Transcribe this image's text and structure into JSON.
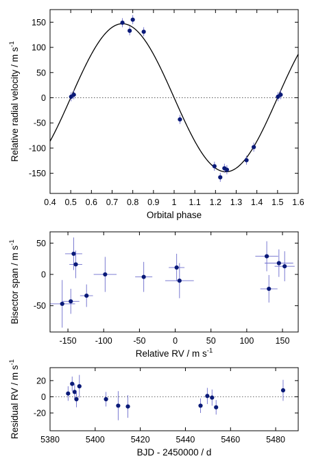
{
  "colors": {
    "point": "#0a1a78",
    "errorbar": "#6b6bcc",
    "fit": "#000000",
    "axis": "#000000",
    "zeroline": "#555555"
  },
  "chart_data": [
    {
      "id": "rv-phase",
      "type": "scatter",
      "xlabel": "Orbital phase",
      "ylabel": "Relative radial velocity / m s",
      "ylabel_sup": "-1",
      "xlim": [
        0.4,
        1.6
      ],
      "ylim": [
        -190,
        175
      ],
      "xticks": [
        0.4,
        0.5,
        0.6,
        0.7,
        0.8,
        0.9,
        1,
        1.1,
        1.2,
        1.3,
        1.4,
        1.5,
        1.6
      ],
      "xticklabels": [
        "0.4",
        "0.5",
        "0.6",
        "0.7",
        "0.8",
        "0.9",
        "1",
        "1.1",
        "1.2",
        "1.3",
        "1.4",
        "1.5",
        "1.6"
      ],
      "yticks": [
        -150,
        -100,
        -50,
        0,
        50,
        100,
        150
      ],
      "yticklabels": [
        "-150",
        "-100",
        "-50",
        "0",
        "50",
        "100",
        "150"
      ],
      "zero_line": true,
      "model": {
        "type": "sine",
        "amplitude": 147,
        "zero_phase": 1.0,
        "period": 1.0,
        "slope": "decreasing"
      },
      "points": [
        {
          "x": 0.502,
          "y": 2,
          "yerr": 9
        },
        {
          "x": 0.515,
          "y": 6,
          "yerr": 9
        },
        {
          "x": 0.75,
          "y": 149,
          "yerr": 9
        },
        {
          "x": 0.785,
          "y": 133,
          "yerr": 9
        },
        {
          "x": 0.8,
          "y": 155,
          "yerr": 9
        },
        {
          "x": 0.853,
          "y": 131,
          "yerr": 9
        },
        {
          "x": 1.028,
          "y": -43,
          "yerr": 9
        },
        {
          "x": 1.195,
          "y": -136,
          "yerr": 9
        },
        {
          "x": 1.223,
          "y": -158,
          "yerr": 9
        },
        {
          "x": 1.243,
          "y": -140,
          "yerr": 9
        },
        {
          "x": 1.255,
          "y": -143,
          "yerr": 9
        },
        {
          "x": 1.35,
          "y": -124,
          "yerr": 9
        },
        {
          "x": 1.385,
          "y": -98,
          "yerr": 9
        },
        {
          "x": 1.502,
          "y": 2,
          "yerr": 9
        },
        {
          "x": 1.515,
          "y": 6,
          "yerr": 9
        }
      ]
    },
    {
      "id": "bisector",
      "type": "scatter",
      "xlabel": "Relative RV / m s",
      "xlabel_sup": "-1",
      "ylabel": "Bisector span / m s",
      "ylabel_sup": "-1",
      "xlim": [
        -175,
        172
      ],
      "ylim": [
        -92,
        68
      ],
      "xticks": [
        -150,
        -100,
        -50,
        0,
        50,
        100,
        150
      ],
      "xticklabels": [
        "-150",
        "-100",
        "-50",
        "0",
        "50",
        "100",
        "150"
      ],
      "yticks": [
        -50,
        0,
        50
      ],
      "yticklabels": [
        "-50",
        "0",
        "50"
      ],
      "zero_line": false,
      "points": [
        {
          "x": -158,
          "y": -47,
          "xerr": 18,
          "yerr": 38
        },
        {
          "x": -146,
          "y": -43,
          "xerr": 12,
          "yerr": 20
        },
        {
          "x": -142,
          "y": 33,
          "xerr": 12,
          "yerr": 26
        },
        {
          "x": -139,
          "y": 16,
          "xerr": 9,
          "yerr": 22
        },
        {
          "x": -124,
          "y": -34,
          "xerr": 9,
          "yerr": 18
        },
        {
          "x": -98,
          "y": 0,
          "xerr": 16,
          "yerr": 28
        },
        {
          "x": -44,
          "y": -4,
          "xerr": 12,
          "yerr": 24
        },
        {
          "x": 2,
          "y": 11,
          "xerr": 11,
          "yerr": 22
        },
        {
          "x": 6,
          "y": -10,
          "xerr": 20,
          "yerr": 28
        },
        {
          "x": 128,
          "y": 29,
          "xerr": 16,
          "yerr": 24
        },
        {
          "x": 131,
          "y": -23,
          "xerr": 12,
          "yerr": 22
        },
        {
          "x": 145,
          "y": 18,
          "xerr": 20,
          "yerr": 22
        },
        {
          "x": 153,
          "y": 13,
          "xerr": 14,
          "yerr": 24
        }
      ]
    },
    {
      "id": "residuals",
      "type": "scatter",
      "xlabel": "BJD - 2450000 / d",
      "ylabel": "Residual RV / m s",
      "ylabel_sup": "-1",
      "xlim": [
        5380,
        5490
      ],
      "ylim": [
        -42,
        36
      ],
      "xticks": [
        5380,
        5400,
        5420,
        5440,
        5460,
        5480
      ],
      "xticklabels": [
        "5380",
        "5400",
        "5420",
        "5440",
        "5460",
        "5480"
      ],
      "yticks": [
        -20,
        0,
        20
      ],
      "yticklabels": [
        "-20",
        "0",
        "20"
      ],
      "zero_line": true,
      "points": [
        {
          "x": 5388.0,
          "y": 4,
          "yerr": 9
        },
        {
          "x": 5389.8,
          "y": 16,
          "yerr": 9
        },
        {
          "x": 5390.9,
          "y": 6,
          "yerr": 10
        },
        {
          "x": 5391.7,
          "y": -3,
          "yerr": 10
        },
        {
          "x": 5393.0,
          "y": 13,
          "yerr": 14
        },
        {
          "x": 5404.8,
          "y": -3,
          "yerr": 9
        },
        {
          "x": 5410.2,
          "y": -11,
          "yerr": 18
        },
        {
          "x": 5414.5,
          "y": -12,
          "yerr": 14
        },
        {
          "x": 5446.7,
          "y": -11,
          "yerr": 9
        },
        {
          "x": 5449.7,
          "y": 1,
          "yerr": 10
        },
        {
          "x": 5451.8,
          "y": -1,
          "yerr": 10
        },
        {
          "x": 5453.6,
          "y": -13,
          "yerr": 9
        },
        {
          "x": 5483.3,
          "y": 8,
          "yerr": 13
        }
      ]
    }
  ]
}
